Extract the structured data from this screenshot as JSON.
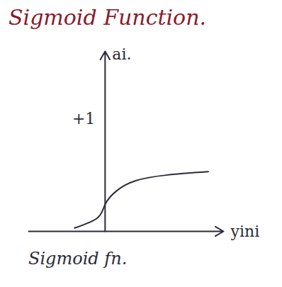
{
  "chart_data": {
    "type": "line",
    "title": "Sigmoid Function.",
    "caption": "Sigmoid fn.",
    "xlabel": "yini",
    "ylabel": "ai.",
    "x": [
      -1.6,
      -0.4,
      0,
      0.6,
      1.6,
      3.2,
      5.4
    ],
    "values": [
      0.03,
      0.12,
      0.24,
      0.36,
      0.45,
      0.5,
      0.53
    ],
    "color": "#2b2b3a",
    "xlim": [
      -4,
      6.2
    ],
    "ylim": [
      0,
      1.6
    ],
    "yticks": [
      {
        "value": 1,
        "label": "+1"
      }
    ],
    "tick_labels": "y",
    "grid": false
  }
}
